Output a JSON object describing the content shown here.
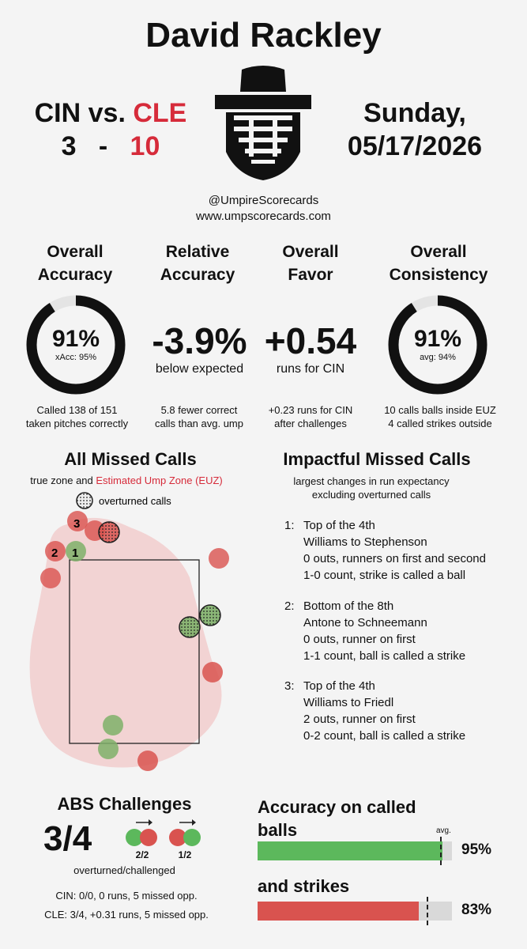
{
  "header": {
    "umpire_name": "David Rackley",
    "away_team": "CIN",
    "vs": "vs.",
    "home_team": "CLE",
    "away_score": "3",
    "dash": "-",
    "home_score": "10",
    "date_line1": "Sunday,",
    "date_line2": "05/17/2026",
    "handle": "@UmpireScorecards",
    "website": "www.umpscorecards.com",
    "logo_icon": "umpire-mask-icon"
  },
  "stats": {
    "accuracy": {
      "title1": "Overall",
      "title2": "Accuracy",
      "value": "91%",
      "value_fraction": 0.91,
      "sub": "xAcc: 95%",
      "desc1": "Called 138 of 151",
      "desc2": "taken pitches correctly"
    },
    "relative": {
      "title1": "Relative",
      "title2": "Accuracy",
      "value": "-3.9%",
      "sub": "below expected",
      "desc1": "5.8 fewer correct",
      "desc2": "calls than avg. ump"
    },
    "favor": {
      "title1": "Overall",
      "title2": "Favor",
      "value": "+0.54",
      "sub": "runs for CIN",
      "desc1": "+0.23 runs for CIN",
      "desc2": "after challenges"
    },
    "consistency": {
      "title1": "Overall",
      "title2": "Consistency",
      "value": "91%",
      "value_fraction": 0.91,
      "sub": "avg: 94%",
      "desc1": "10 calls balls inside EUZ",
      "desc2": "4 called strikes outside"
    }
  },
  "missed_calls": {
    "title": "All Missed Calls",
    "subtitle_a": "true zone and ",
    "subtitle_b": "Estimated Ump Zone (EUZ)",
    "legend_label": "overturned calls",
    "labels": [
      "3",
      "2",
      "1"
    ],
    "colors": {
      "ball_called_strike": "#d9534f",
      "strike_called_ball": "#7fb069",
      "euz": "#f2cfcf"
    }
  },
  "impactful": {
    "title": "Impactful Missed Calls",
    "subtitle1": "largest changes in run expectancy",
    "subtitle2": "excluding overturned calls",
    "items": [
      {
        "idx": "1:",
        "l1": "Top of the 4th",
        "l2": "Williams to Stephenson",
        "l3": "0 outs, runners on first and second",
        "l4": "1-0 count, strike is called a ball"
      },
      {
        "idx": "2:",
        "l1": "Bottom of the 8th",
        "l2": "Antone to Schneemann",
        "l3": "0 outs, runner on first",
        "l4": "1-1 count, ball is called a strike"
      },
      {
        "idx": "3:",
        "l1": "Top of the 4th",
        "l2": "Williams to Friedl",
        "l3": "2 outs, runner on first",
        "l4": "0-2 count, ball is called a strike"
      }
    ]
  },
  "abs": {
    "title": "ABS Challenges",
    "score": "3/4",
    "caption": "overturned/challenged",
    "left_ratio": "2/2",
    "right_ratio": "1/2",
    "cin_line": "CIN: 0/0, 0 runs, 5 missed opp.",
    "cle_line": "CLE: 3/4, +0.31 runs, 5 missed opp."
  },
  "accuracy_bars": {
    "title1": "Accuracy on called",
    "title2": "balls",
    "avg_label": "avg.",
    "balls_value": "95%",
    "balls_fraction": 0.95,
    "balls_avg_fraction": 0.94,
    "strikes_title": "and strikes",
    "strikes_value": "83%",
    "strikes_fraction": 0.83,
    "strikes_avg_fraction": 0.87,
    "colors": {
      "balls": "#5cb85c",
      "strikes": "#d9534f"
    }
  }
}
